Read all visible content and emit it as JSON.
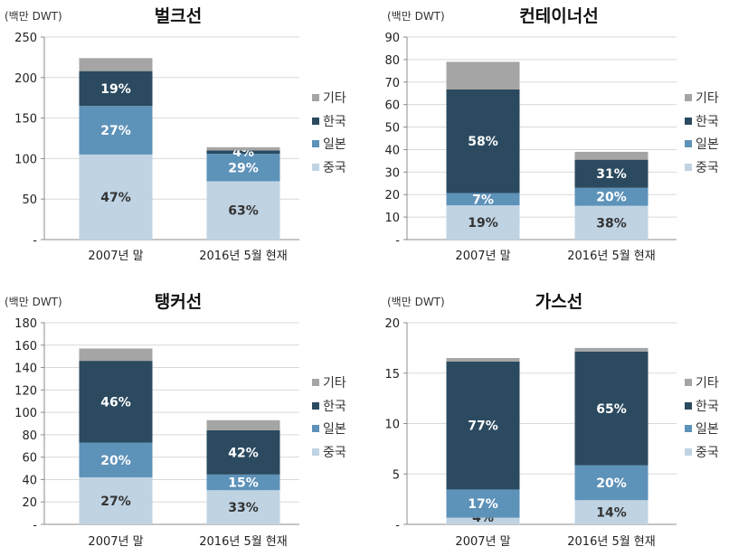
{
  "colors": {
    "china": "#bfd3e3",
    "japan": "#5d92b9",
    "korea": "#2b4a5f",
    "other": "#a5a5a5",
    "grid": "#d9d9d9",
    "axis": "#8c8c8c"
  },
  "chart_data": [
    {
      "type": "bar",
      "title": "벌크선",
      "unit_label": "(백만 DWT)",
      "categories": [
        "2007년 말",
        "2016년 5월 현재"
      ],
      "ylim": [
        0,
        250
      ],
      "yticks": [
        0,
        50,
        100,
        150,
        200,
        250
      ],
      "ytick_labels": [
        "-",
        "50",
        "100",
        "150",
        "200",
        "250"
      ],
      "legend": [
        "기타",
        "한국",
        "일본",
        "중국"
      ],
      "series": [
        {
          "name": "중국",
          "values": [
            105,
            72
          ],
          "labels": [
            "47%",
            "63%"
          ]
        },
        {
          "name": "일본",
          "values": [
            60,
            34
          ],
          "labels": [
            "27%",
            "29%"
          ]
        },
        {
          "name": "한국",
          "values": [
            43,
            4
          ],
          "labels": [
            "19%",
            "4%"
          ]
        },
        {
          "name": "기타",
          "values": [
            16,
            4
          ],
          "labels": [
            "",
            ""
          ]
        }
      ]
    },
    {
      "type": "bar",
      "title": "컨테이너선",
      "unit_label": "(백만 DWT)",
      "categories": [
        "2007년 말",
        "2016년 5월 현재"
      ],
      "ylim": [
        0,
        90
      ],
      "yticks": [
        0,
        10,
        20,
        30,
        40,
        50,
        60,
        70,
        80,
        90
      ],
      "ytick_labels": [
        "-",
        "10",
        "20",
        "30",
        "40",
        "50",
        "60",
        "70",
        "80",
        "90"
      ],
      "legend": [
        "기타",
        "한국",
        "일본",
        "중국"
      ],
      "series": [
        {
          "name": "중국",
          "values": [
            15.2,
            15
          ],
          "labels": [
            "19%",
            "38%"
          ]
        },
        {
          "name": "일본",
          "values": [
            5.5,
            8
          ],
          "labels": [
            "7%",
            "20%"
          ]
        },
        {
          "name": "한국",
          "values": [
            46,
            12.5
          ],
          "labels": [
            "58%",
            "31%"
          ]
        },
        {
          "name": "기타",
          "values": [
            12.3,
            3.5
          ],
          "labels": [
            "",
            ""
          ]
        }
      ]
    },
    {
      "type": "bar",
      "title": "탱커선",
      "unit_label": "(백만 DWT)",
      "categories": [
        "2007년 말",
        "2016년 5월 현재"
      ],
      "ylim": [
        0,
        180
      ],
      "yticks": [
        0,
        20,
        40,
        60,
        80,
        100,
        120,
        140,
        160,
        180
      ],
      "ytick_labels": [
        "-",
        "20",
        "40",
        "60",
        "80",
        "100",
        "120",
        "140",
        "160",
        "180"
      ],
      "legend": [
        "기타",
        "한국",
        "일본",
        "중국"
      ],
      "series": [
        {
          "name": "중국",
          "values": [
            42,
            30.5
          ],
          "labels": [
            "27%",
            "33%"
          ]
        },
        {
          "name": "일본",
          "values": [
            31,
            14
          ],
          "labels": [
            "20%",
            "15%"
          ]
        },
        {
          "name": "한국",
          "values": [
            73,
            39.5
          ],
          "labels": [
            "46%",
            "42%"
          ]
        },
        {
          "name": "기타",
          "values": [
            11,
            9
          ],
          "labels": [
            "",
            ""
          ]
        }
      ]
    },
    {
      "type": "bar",
      "title": "가스선",
      "unit_label": "(백만 DWT)",
      "categories": [
        "2007년 말",
        "2016년 5월 현재"
      ],
      "ylim": [
        0,
        20
      ],
      "yticks": [
        0,
        5,
        10,
        15,
        20
      ],
      "ytick_labels": [
        "-",
        "5",
        "10",
        "15",
        "20"
      ],
      "legend": [
        "기타",
        "한국",
        "일본",
        "중국"
      ],
      "series": [
        {
          "name": "중국",
          "values": [
            0.66,
            2.4
          ],
          "labels": [
            "4%",
            "14%"
          ]
        },
        {
          "name": "일본",
          "values": [
            2.8,
            3.45
          ],
          "labels": [
            "17%",
            "20%"
          ]
        },
        {
          "name": "한국",
          "values": [
            12.7,
            11.3
          ],
          "labels": [
            "77%",
            "65%"
          ]
        },
        {
          "name": "기타",
          "values": [
            0.34,
            0.35
          ],
          "labels": [
            "",
            ""
          ]
        }
      ]
    }
  ]
}
